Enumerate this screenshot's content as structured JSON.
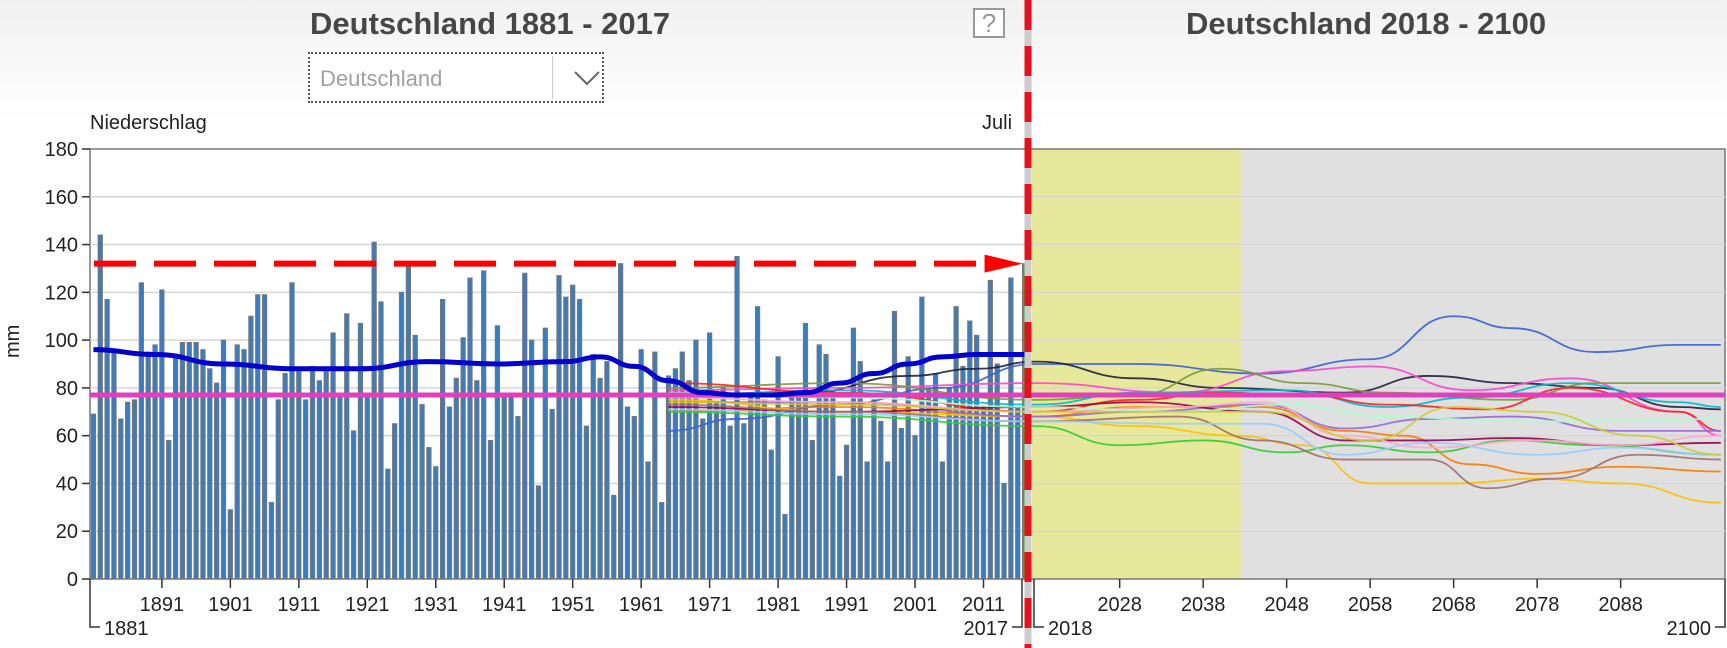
{
  "header": {
    "title_left": "Deutschland 1881 - 2017",
    "title_right": "Deutschland 2018 - 2100",
    "help_label": "?",
    "region_select": {
      "value": "Deutschland"
    }
  },
  "chart_data": {
    "type": "bar",
    "title_left": "Deutschland 1881 - 2017",
    "title_right": "Deutschland 2018 - 2100",
    "variable_label": "Niederschlag",
    "month_label": "Juli",
    "ylabel": "mm",
    "ylim": [
      0,
      180
    ],
    "yticks": [
      0,
      20,
      40,
      60,
      80,
      100,
      120,
      140,
      160,
      180
    ],
    "grid": true,
    "observed": {
      "x_start": 1881,
      "x_end": 2017,
      "xticks": [
        1891,
        1901,
        1911,
        1921,
        1931,
        1941,
        1951,
        1961,
        1971,
        1981,
        1991,
        2001,
        2011
      ],
      "xtick_labels": [
        "1891",
        "1901",
        "1911",
        "1921",
        "1931",
        "1941",
        "1951",
        "1961",
        "1971",
        "1981",
        "1991",
        "2001",
        "2011"
      ],
      "range_labels": [
        "1881",
        "2017"
      ],
      "bar_color": "#3a7cc0",
      "last_bar_color": "#4ea332",
      "values": [
        69,
        144,
        117,
        95,
        67,
        74,
        75,
        124,
        95,
        98,
        121,
        58,
        93,
        99,
        99,
        99,
        96,
        88,
        82,
        100,
        29,
        98,
        96,
        110,
        119,
        119,
        32,
        75,
        86,
        124,
        88,
        75,
        89,
        83,
        87,
        103,
        76,
        111,
        62,
        107,
        76,
        141,
        116,
        46,
        65,
        120,
        131,
        102,
        73,
        55,
        47,
        117,
        72,
        84,
        101,
        126,
        83,
        129,
        58,
        106,
        76,
        77,
        68,
        128,
        100,
        39,
        105,
        71,
        127,
        118,
        123,
        117,
        64,
        94,
        84,
        91,
        35,
        132,
        72,
        68,
        96,
        49,
        95,
        32,
        85,
        88,
        95,
        83,
        100,
        67,
        103,
        74,
        80,
        64,
        135,
        65,
        76,
        114,
        75,
        54,
        93,
        27,
        76,
        76,
        107,
        58,
        98,
        94,
        79,
        43,
        56,
        105,
        91,
        49,
        75,
        66,
        49,
        112,
        63,
        93,
        60,
        118,
        80,
        86,
        49,
        80,
        114,
        89,
        108,
        102,
        72,
        125,
        90,
        40,
        126,
        72,
        132
      ],
      "moving_average": {
        "color": "#0000cc",
        "points": [
          [
            1881,
            96
          ],
          [
            1890,
            94
          ],
          [
            1900,
            90
          ],
          [
            1910,
            88
          ],
          [
            1920,
            88
          ],
          [
            1930,
            91
          ],
          [
            1940,
            90
          ],
          [
            1950,
            91
          ],
          [
            1955,
            93
          ],
          [
            1960,
            89
          ],
          [
            1965,
            83
          ],
          [
            1970,
            78
          ],
          [
            1975,
            77
          ],
          [
            1980,
            77
          ],
          [
            1985,
            78
          ],
          [
            1990,
            82
          ],
          [
            1995,
            86
          ],
          [
            2000,
            90
          ],
          [
            2005,
            93
          ],
          [
            2010,
            94
          ],
          [
            2017,
            94
          ]
        ]
      },
      "reference_line": {
        "value": 132,
        "color": "#ff0000",
        "style": "dashed-arrow"
      }
    },
    "mean_line": {
      "value": 77,
      "color": "#e23fbf"
    },
    "projection": {
      "x_start": 2018,
      "x_end": 2100,
      "xticks": [
        2028,
        2038,
        2048,
        2058,
        2068,
        2078,
        2088
      ],
      "xtick_labels": [
        "2028",
        "2038",
        "2048",
        "2058",
        "2068",
        "2078",
        "2088"
      ],
      "range_labels": [
        "2018",
        "2100"
      ],
      "highlight_period": [
        2018,
        2042
      ],
      "highlight_color": "#e8e89c",
      "background_color": "#e0e0e0",
      "series": [
        {
          "name": "model-1",
          "color": "#3a5fd6",
          "points": [
            [
              1965,
              62
            ],
            [
              1975,
              67
            ],
            [
              1990,
              73
            ],
            [
              2005,
              80
            ],
            [
              2018,
              90
            ],
            [
              2030,
              90
            ],
            [
              2045,
              86
            ],
            [
              2058,
              92
            ],
            [
              2068,
              110
            ],
            [
              2075,
              105
            ],
            [
              2085,
              95
            ],
            [
              2095,
              98
            ],
            [
              2100,
              98
            ]
          ]
        },
        {
          "name": "model-2",
          "color": "#202040",
          "points": [
            [
              1985,
              78
            ],
            [
              2000,
              85
            ],
            [
              2010,
              88
            ],
            [
              2018,
              91
            ],
            [
              2030,
              84
            ],
            [
              2040,
              80
            ],
            [
              2055,
              78
            ],
            [
              2065,
              85
            ],
            [
              2075,
              82
            ],
            [
              2085,
              80
            ],
            [
              2095,
              72
            ],
            [
              2100,
              71
            ]
          ]
        },
        {
          "name": "model-3",
          "color": "#ff44cc",
          "points": [
            [
              1965,
              79
            ],
            [
              1990,
              80
            ],
            [
              2018,
              82
            ],
            [
              2035,
              78
            ],
            [
              2048,
              87
            ],
            [
              2058,
              89
            ],
            [
              2070,
              79
            ],
            [
              2082,
              84
            ],
            [
              2095,
              70
            ],
            [
              2100,
              60
            ]
          ]
        },
        {
          "name": "model-4",
          "color": "#7a9a3a",
          "points": [
            [
              1965,
              80
            ],
            [
              1990,
              82
            ],
            [
              2018,
              75
            ],
            [
              2030,
              77
            ],
            [
              2040,
              88
            ],
            [
              2050,
              82
            ],
            [
              2060,
              78
            ],
            [
              2075,
              75
            ],
            [
              2085,
              82
            ],
            [
              2100,
              82
            ]
          ]
        },
        {
          "name": "model-5",
          "color": "#00b8d0",
          "points": [
            [
              1965,
              77
            ],
            [
              1990,
              79
            ],
            [
              2018,
              73
            ],
            [
              2030,
              78
            ],
            [
              2048,
              79
            ],
            [
              2060,
              72
            ],
            [
              2070,
              76
            ],
            [
              2082,
              82
            ],
            [
              2095,
              74
            ],
            [
              2100,
              72
            ]
          ]
        },
        {
          "name": "model-6",
          "color": "#ff2020",
          "points": [
            [
              1965,
              82
            ],
            [
              1990,
              78
            ],
            [
              2018,
              70
            ],
            [
              2030,
              75
            ],
            [
              2040,
              78
            ],
            [
              2050,
              77
            ],
            [
              2060,
              73
            ],
            [
              2072,
              71
            ],
            [
              2082,
              80
            ],
            [
              2095,
              70
            ],
            [
              2100,
              62
            ]
          ]
        },
        {
          "name": "model-7",
          "color": "#ff7a00",
          "points": [
            [
              1965,
              70
            ],
            [
              1990,
              72
            ],
            [
              2018,
              68
            ],
            [
              2030,
              72
            ],
            [
              2045,
              72
            ],
            [
              2055,
              62
            ],
            [
              2062,
              60
            ],
            [
              2070,
              48
            ],
            [
              2078,
              44
            ],
            [
              2088,
              47
            ],
            [
              2100,
              45
            ]
          ]
        },
        {
          "name": "model-8",
          "color": "#ffc000",
          "points": [
            [
              1965,
              75
            ],
            [
              1990,
              70
            ],
            [
              2018,
              68
            ],
            [
              2030,
              64
            ],
            [
              2042,
              60
            ],
            [
              2050,
              56
            ],
            [
              2058,
              40
            ],
            [
              2068,
              40
            ],
            [
              2078,
              42
            ],
            [
              2088,
              40
            ],
            [
              2100,
              32
            ]
          ]
        },
        {
          "name": "model-9",
          "color": "#33cc33",
          "points": [
            [
              1965,
              70
            ],
            [
              1990,
              68
            ],
            [
              2018,
              64
            ],
            [
              2028,
              56
            ],
            [
              2038,
              58
            ],
            [
              2048,
              53
            ],
            [
              2055,
              56
            ],
            [
              2065,
              53
            ],
            [
              2075,
              58
            ],
            [
              2085,
              56
            ],
            [
              2100,
              52
            ]
          ]
        },
        {
          "name": "model-10",
          "color": "#9966dd",
          "points": [
            [
              1965,
              74
            ],
            [
              1990,
              74
            ],
            [
              2018,
              68
            ],
            [
              2030,
              70
            ],
            [
              2045,
              73
            ],
            [
              2055,
              63
            ],
            [
              2065,
              67
            ],
            [
              2075,
              68
            ],
            [
              2088,
              62
            ],
            [
              2100,
              62
            ]
          ]
        },
        {
          "name": "model-11",
          "color": "#990055",
          "points": [
            [
              1965,
              72
            ],
            [
              1990,
              70
            ],
            [
              2018,
              72
            ],
            [
              2030,
              74
            ],
            [
              2045,
              70
            ],
            [
              2055,
              58
            ],
            [
              2065,
              58
            ],
            [
              2075,
              59
            ],
            [
              2088,
              56
            ],
            [
              2100,
              57
            ]
          ]
        },
        {
          "name": "model-12",
          "color": "#a07070",
          "points": [
            [
              1965,
              73
            ],
            [
              1990,
              70
            ],
            [
              2018,
              66
            ],
            [
              2035,
              68
            ],
            [
              2045,
              58
            ],
            [
              2055,
              50
            ],
            [
              2065,
              50
            ],
            [
              2072,
              38
            ],
            [
              2080,
              42
            ],
            [
              2090,
              52
            ],
            [
              2100,
              50
            ]
          ]
        },
        {
          "name": "model-13",
          "color": "#99ccff",
          "points": [
            [
              1965,
              71
            ],
            [
              1990,
              69
            ],
            [
              2018,
              66
            ],
            [
              2035,
              65
            ],
            [
              2045,
              65
            ],
            [
              2055,
              52
            ],
            [
              2065,
              57
            ],
            [
              2078,
              52
            ],
            [
              2088,
              55
            ],
            [
              2100,
              52
            ]
          ]
        },
        {
          "name": "model-14",
          "color": "#ffaacc",
          "points": [
            [
              1965,
              76
            ],
            [
              1990,
              74
            ],
            [
              2018,
              70
            ],
            [
              2035,
              72
            ],
            [
              2045,
              74
            ],
            [
              2055,
              60
            ],
            [
              2065,
              55
            ],
            [
              2078,
              58
            ],
            [
              2088,
              56
            ],
            [
              2100,
              60
            ]
          ]
        },
        {
          "name": "model-15",
          "color": "#aaffcc",
          "points": [
            [
              1965,
              78
            ],
            [
              1990,
              76
            ],
            [
              2018,
              72
            ],
            [
              2035,
              70
            ],
            [
              2048,
              73
            ],
            [
              2060,
              68
            ],
            [
              2075,
              66
            ],
            [
              2088,
              66
            ],
            [
              2100,
              67
            ]
          ]
        },
        {
          "name": "model-16",
          "color": "#cccc33",
          "points": [
            [
              1965,
              74
            ],
            [
              1990,
              73
            ],
            [
              2018,
              70
            ],
            [
              2035,
              70
            ],
            [
              2045,
              70
            ],
            [
              2058,
              58
            ],
            [
              2068,
              72
            ],
            [
              2078,
              70
            ],
            [
              2090,
              60
            ],
            [
              2100,
              52
            ]
          ]
        }
      ]
    }
  }
}
